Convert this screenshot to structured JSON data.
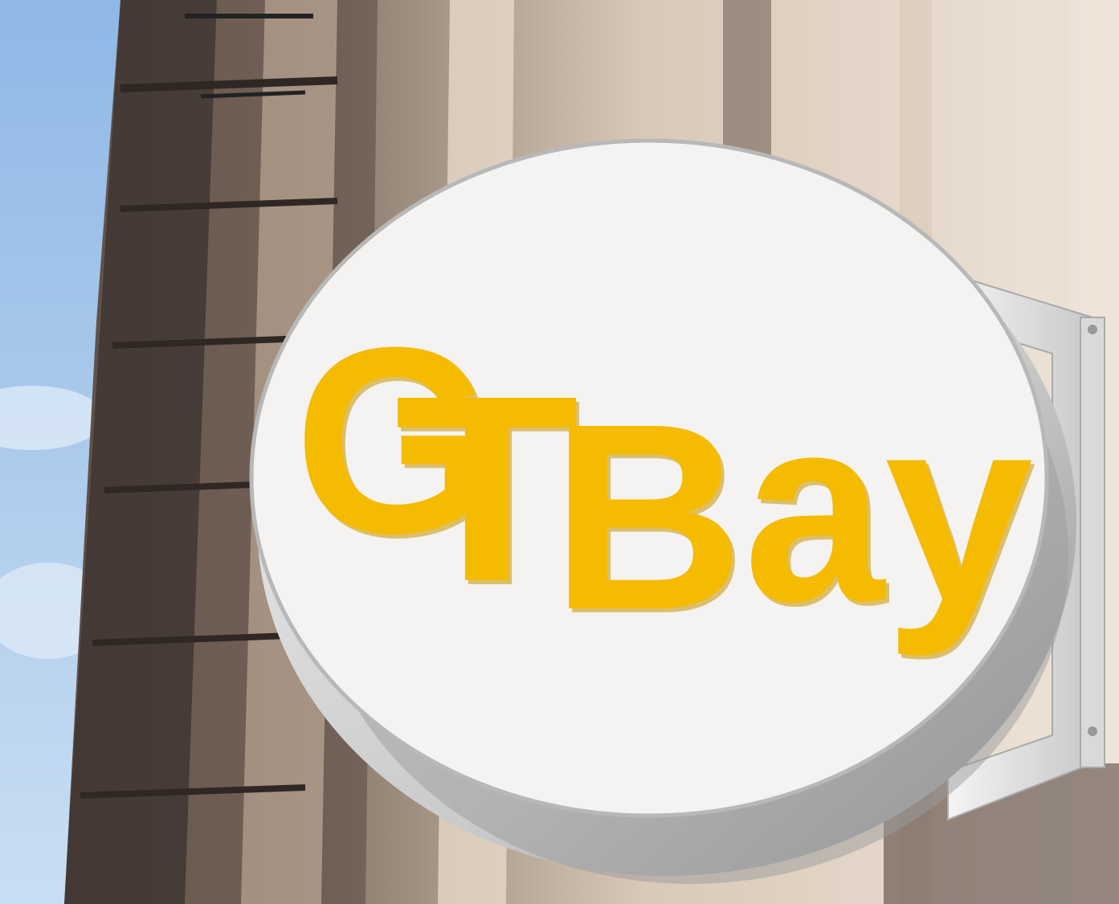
{
  "scene": {
    "description_visible": false,
    "colors": {
      "sky_top": "#8fb8e6",
      "sky_bottom": "#c4dcf3",
      "facade_light": "#ece1d5",
      "facade_mid": "#d5c5b3",
      "facade_dark": "#4a3f3b",
      "sign_face": "#f4f3f1",
      "sign_rim": "#bdbdbd",
      "bracket": "#e6e6e6",
      "logo_yellow": "#f5bb00",
      "logo_shadow": "#c89500"
    },
    "logo": {
      "letters": [
        "G",
        "T",
        "B",
        "a",
        "y"
      ],
      "rendered_as_picture": true
    }
  }
}
